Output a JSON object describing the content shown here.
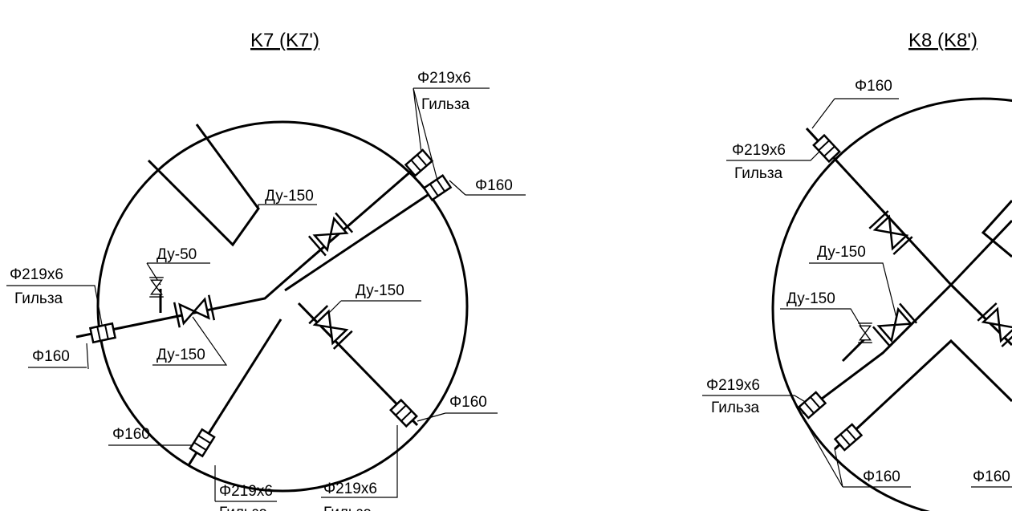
{
  "drawings": [
    {
      "title": "K7 (K7')",
      "labels": [
        "Φ219х6",
        "Гильза",
        "Φ160",
        "Ду-150",
        "Ду-50",
        "Φ219х6",
        "Гильза",
        "Ду-150",
        "Ду-150",
        "Φ160",
        "Φ160",
        "Φ160",
        "Φ219х6",
        "Гильза",
        "Φ219х6",
        "Гильза"
      ]
    },
    {
      "title": "K8 (K8')",
      "labels": [
        "Φ160",
        "Φ219х6",
        "Гильза",
        "Ду-150",
        "Ду-150",
        "Φ219х6",
        "Гильза",
        "Φ160",
        "Φ160"
      ]
    }
  ]
}
